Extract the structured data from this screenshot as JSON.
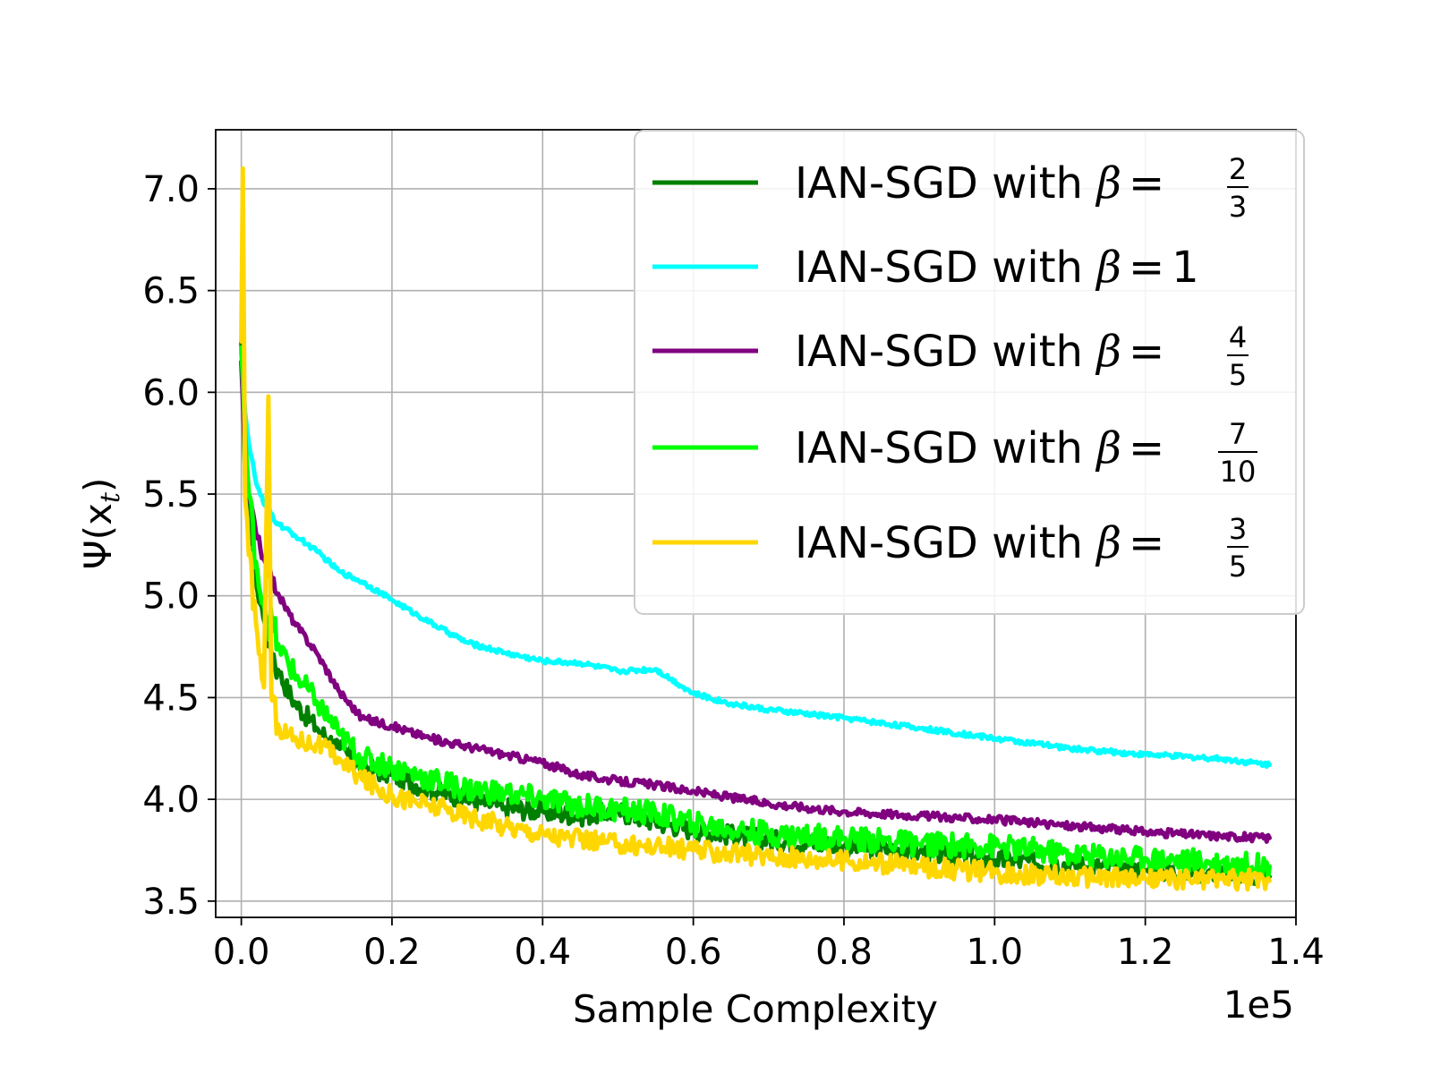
{
  "chart_data": {
    "type": "line",
    "title": "",
    "xlabel": "Sample Complexity",
    "ylabel_base": "Ψ(x",
    "ylabel_sub": "t",
    "ylabel_close": ")",
    "x_scale_label": "1e5",
    "xlim": [
      -0.034,
      1.4
    ],
    "ylim": [
      3.42,
      7.29
    ],
    "xticks": [
      0.0,
      0.2,
      0.4,
      0.6,
      0.8,
      1.0,
      1.2,
      1.4
    ],
    "xtick_labels": [
      "0.0",
      "0.2",
      "0.4",
      "0.6",
      "0.8",
      "1.0",
      "1.2",
      "1.4"
    ],
    "yticks": [
      3.5,
      4.0,
      4.5,
      5.0,
      5.5,
      6.0,
      6.5,
      7.0
    ],
    "ytick_labels": [
      "3.5",
      "4.0",
      "4.5",
      "5.0",
      "5.5",
      "6.0",
      "6.5",
      "7.0"
    ],
    "grid": true,
    "legend_position": "top-right",
    "series": [
      {
        "name_prefix": "IAN-SGD with ",
        "beta": "β",
        "eq": "=",
        "frac_num": "2",
        "frac_den": "3",
        "value_text": "",
        "color": "#008000",
        "noise": 0.05,
        "points": [
          [
            0.0,
            6.25
          ],
          [
            0.005,
            5.6
          ],
          [
            0.01,
            5.4
          ],
          [
            0.02,
            5.05
          ],
          [
            0.03,
            4.88
          ],
          [
            0.05,
            4.62
          ],
          [
            0.07,
            4.48
          ],
          [
            0.1,
            4.35
          ],
          [
            0.13,
            4.25
          ],
          [
            0.16,
            4.16
          ],
          [
            0.2,
            4.12
          ],
          [
            0.25,
            4.05
          ],
          [
            0.3,
            4.0
          ],
          [
            0.35,
            3.96
          ],
          [
            0.4,
            3.94
          ],
          [
            0.45,
            3.92
          ],
          [
            0.5,
            3.94
          ],
          [
            0.55,
            3.89
          ],
          [
            0.6,
            3.85
          ],
          [
            0.7,
            3.8
          ],
          [
            0.8,
            3.77
          ],
          [
            0.9,
            3.74
          ],
          [
            1.0,
            3.7
          ],
          [
            1.1,
            3.68
          ],
          [
            1.2,
            3.65
          ],
          [
            1.3,
            3.64
          ],
          [
            1.365,
            3.62
          ]
        ]
      },
      {
        "name_prefix": "IAN-SGD with ",
        "beta": "β",
        "eq": "=",
        "frac_num": "",
        "frac_den": "",
        "value_text": "1",
        "color": "#00ffff",
        "noise": 0.012,
        "points": [
          [
            0.0,
            6.2
          ],
          [
            0.005,
            5.9
          ],
          [
            0.01,
            5.75
          ],
          [
            0.02,
            5.55
          ],
          [
            0.03,
            5.45
          ],
          [
            0.05,
            5.35
          ],
          [
            0.07,
            5.3
          ],
          [
            0.1,
            5.22
          ],
          [
            0.13,
            5.12
          ],
          [
            0.16,
            5.07
          ],
          [
            0.2,
            4.98
          ],
          [
            0.25,
            4.87
          ],
          [
            0.3,
            4.77
          ],
          [
            0.35,
            4.72
          ],
          [
            0.4,
            4.68
          ],
          [
            0.45,
            4.67
          ],
          [
            0.5,
            4.63
          ],
          [
            0.55,
            4.64
          ],
          [
            0.6,
            4.52
          ],
          [
            0.65,
            4.47
          ],
          [
            0.7,
            4.44
          ],
          [
            0.8,
            4.4
          ],
          [
            0.9,
            4.35
          ],
          [
            1.0,
            4.3
          ],
          [
            1.1,
            4.25
          ],
          [
            1.2,
            4.22
          ],
          [
            1.3,
            4.2
          ],
          [
            1.365,
            4.17
          ]
        ]
      },
      {
        "name_prefix": "IAN-SGD with ",
        "beta": "β",
        "eq": "=",
        "frac_num": "4",
        "frac_den": "5",
        "value_text": "",
        "color": "#800080",
        "noise": 0.02,
        "points": [
          [
            0.0,
            6.15
          ],
          [
            0.005,
            5.7
          ],
          [
            0.01,
            5.5
          ],
          [
            0.02,
            5.3
          ],
          [
            0.03,
            5.18
          ],
          [
            0.05,
            5.0
          ],
          [
            0.07,
            4.87
          ],
          [
            0.1,
            4.72
          ],
          [
            0.13,
            4.53
          ],
          [
            0.16,
            4.4
          ],
          [
            0.2,
            4.36
          ],
          [
            0.25,
            4.3
          ],
          [
            0.3,
            4.26
          ],
          [
            0.35,
            4.22
          ],
          [
            0.4,
            4.18
          ],
          [
            0.45,
            4.12
          ],
          [
            0.5,
            4.09
          ],
          [
            0.55,
            4.07
          ],
          [
            0.6,
            4.04
          ],
          [
            0.7,
            3.98
          ],
          [
            0.8,
            3.94
          ],
          [
            0.9,
            3.92
          ],
          [
            1.0,
            3.9
          ],
          [
            1.1,
            3.87
          ],
          [
            1.2,
            3.84
          ],
          [
            1.3,
            3.82
          ],
          [
            1.365,
            3.81
          ]
        ]
      },
      {
        "name_prefix": "IAN-SGD with ",
        "beta": "β",
        "eq": "=",
        "frac_num": "7",
        "frac_den": "10",
        "value_text": "",
        "color": "#00ff00",
        "noise": 0.06,
        "points": [
          [
            0.0,
            6.22
          ],
          [
            0.005,
            5.8
          ],
          [
            0.01,
            5.5
          ],
          [
            0.02,
            5.15
          ],
          [
            0.03,
            4.95
          ],
          [
            0.05,
            4.75
          ],
          [
            0.07,
            4.62
          ],
          [
            0.1,
            4.48
          ],
          [
            0.13,
            4.32
          ],
          [
            0.16,
            4.2
          ],
          [
            0.2,
            4.16
          ],
          [
            0.25,
            4.1
          ],
          [
            0.3,
            4.05
          ],
          [
            0.35,
            4.03
          ],
          [
            0.4,
            4.0
          ],
          [
            0.45,
            3.97
          ],
          [
            0.5,
            3.95
          ],
          [
            0.55,
            3.93
          ],
          [
            0.6,
            3.88
          ],
          [
            0.7,
            3.83
          ],
          [
            0.8,
            3.81
          ],
          [
            0.9,
            3.78
          ],
          [
            1.0,
            3.77
          ],
          [
            1.1,
            3.73
          ],
          [
            1.2,
            3.71
          ],
          [
            1.3,
            3.69
          ],
          [
            1.365,
            3.67
          ]
        ]
      },
      {
        "name_prefix": "IAN-SGD with ",
        "beta": "β",
        "eq": "=",
        "frac_num": "3",
        "frac_den": "5",
        "value_text": "",
        "color": "#ffd700",
        "noise": 0.05,
        "points": [
          [
            0.0,
            6.25
          ],
          [
            0.002,
            7.1
          ],
          [
            0.005,
            5.5
          ],
          [
            0.01,
            5.2
          ],
          [
            0.02,
            4.85
          ],
          [
            0.03,
            4.55
          ],
          [
            0.036,
            5.98
          ],
          [
            0.04,
            4.5
          ],
          [
            0.05,
            4.35
          ],
          [
            0.07,
            4.3
          ],
          [
            0.1,
            4.27
          ],
          [
            0.13,
            4.2
          ],
          [
            0.16,
            4.1
          ],
          [
            0.2,
            4.02
          ],
          [
            0.25,
            3.97
          ],
          [
            0.3,
            3.92
          ],
          [
            0.35,
            3.87
          ],
          [
            0.4,
            3.83
          ],
          [
            0.45,
            3.8
          ],
          [
            0.5,
            3.78
          ],
          [
            0.55,
            3.77
          ],
          [
            0.6,
            3.75
          ],
          [
            0.7,
            3.72
          ],
          [
            0.8,
            3.7
          ],
          [
            0.9,
            3.67
          ],
          [
            1.0,
            3.64
          ],
          [
            1.1,
            3.62
          ],
          [
            1.2,
            3.61
          ],
          [
            1.3,
            3.61
          ],
          [
            1.365,
            3.6
          ]
        ]
      }
    ]
  }
}
